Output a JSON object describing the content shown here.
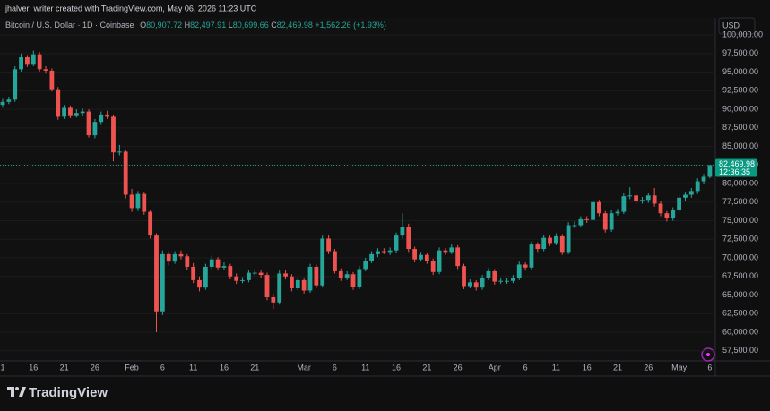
{
  "page": {
    "caption": "jhalver_writer created with TradingView.com, May 06, 2026 11:23 UTC",
    "symbol": "Bitcoin / U.S. Dollar · 1D · Coinbase",
    "ohlc": [
      {
        "key": "O",
        "value": "80,907.72"
      },
      {
        "key": "H",
        "value": "82,497.91"
      },
      {
        "key": "L",
        "value": "80,699.66"
      },
      {
        "key": "C",
        "value": "82,469.98"
      }
    ],
    "change": "+1,562.26 (+1.93%)",
    "currency": "USD",
    "last_price_label": "82,469.98",
    "countdown": "12:36:35",
    "brand": "TradingView"
  },
  "chart_data": {
    "type": "candlestick",
    "up_color": "#26a69a",
    "down_color": "#ef5350",
    "grid": true,
    "categories": [
      "1",
      null,
      null,
      null,
      null,
      "16",
      null,
      null,
      null,
      null,
      "21",
      null,
      null,
      null,
      null,
      "26",
      null,
      null,
      null,
      null,
      null,
      "Feb",
      null,
      null,
      null,
      null,
      "6",
      null,
      null,
      null,
      null,
      "11",
      null,
      null,
      null,
      null,
      "16",
      null,
      null,
      null,
      null,
      "21",
      null,
      null,
      null,
      null,
      null,
      null,
      null,
      "Mar",
      null,
      null,
      null,
      null,
      "6",
      null,
      null,
      null,
      null,
      "11",
      null,
      null,
      null,
      null,
      "16",
      null,
      null,
      null,
      null,
      "21",
      null,
      null,
      null,
      null,
      "26",
      null,
      null,
      null,
      null,
      null,
      "Apr",
      null,
      null,
      null,
      null,
      "6",
      null,
      null,
      null,
      null,
      "11",
      null,
      null,
      null,
      null,
      "16",
      null,
      null,
      null,
      null,
      "21",
      null,
      null,
      null,
      null,
      "26",
      null,
      null,
      null,
      null,
      "May",
      null,
      null,
      null,
      null,
      "6"
    ],
    "open": [
      90600,
      91000,
      91300,
      95400,
      97000,
      96000,
      97400,
      95400,
      95200,
      92700,
      89000,
      90200,
      89200,
      89500,
      89700,
      86500,
      88300,
      89300,
      89000,
      84200,
      84300,
      78500,
      76700,
      78600,
      76200,
      73000,
      62800,
      70500,
      69500,
      70500,
      70200,
      68800,
      67000,
      66000,
      68800,
      69800,
      68700,
      68900,
      67500,
      66900,
      67000,
      68000,
      68000,
      67700,
      64700,
      64000,
      67900,
      67500,
      65900,
      67000,
      65600,
      68800,
      66300,
      72600,
      70900,
      68200,
      67300,
      67800,
      66100,
      68500,
      69600,
      70500,
      70900,
      70800,
      71000,
      73000,
      74200,
      71200,
      69800,
      70400,
      69600,
      68100,
      71000,
      70800,
      71400,
      68900,
      66200,
      66700,
      66000,
      67300,
      68200,
      66800,
      66900,
      66900,
      67300,
      69100,
      68700,
      71800,
      71200,
      72700,
      72000,
      72900,
      70800,
      74400,
      74400,
      75200,
      75100,
      77500,
      76000,
      73800,
      76000,
      76200,
      78300,
      78400,
      77600,
      77800,
      78400,
      77300,
      76000,
      75300,
      76400,
      78100,
      78500,
      79000,
      80300,
      80907.72
    ],
    "high": [
      91400,
      91700,
      95800,
      97500,
      97300,
      97900,
      97700,
      95800,
      95500,
      93000,
      90600,
      90500,
      90000,
      90100,
      90000,
      88700,
      89700,
      89800,
      89300,
      85200,
      84600,
      79300,
      79000,
      78900,
      76500,
      73300,
      71000,
      70900,
      70900,
      71000,
      70500,
      69300,
      67500,
      69200,
      70300,
      70100,
      69400,
      69200,
      67900,
      67400,
      68400,
      68500,
      68300,
      68000,
      65200,
      68300,
      68400,
      67800,
      67400,
      67300,
      69200,
      69100,
      73000,
      73100,
      71200,
      68600,
      68200,
      68100,
      68900,
      70000,
      70900,
      71300,
      71300,
      71400,
      73400,
      76000,
      74600,
      71500,
      70800,
      70700,
      69900,
      71400,
      71300,
      71800,
      71700,
      69200,
      67100,
      67000,
      67700,
      68600,
      68500,
      67300,
      67300,
      67700,
      69500,
      69400,
      72200,
      72100,
      73100,
      73000,
      73300,
      73200,
      74800,
      74900,
      75600,
      75600,
      77900,
      77800,
      76300,
      76400,
      76600,
      78700,
      79500,
      78700,
      78200,
      78800,
      79400,
      77600,
      76300,
      76800,
      78500,
      78900,
      79400,
      80700,
      81300,
      82497.91
    ],
    "low": [
      90200,
      90700,
      91000,
      95100,
      95700,
      95800,
      95100,
      94800,
      92400,
      88600,
      88700,
      88800,
      88900,
      89100,
      86200,
      86100,
      87900,
      88700,
      83000,
      83800,
      78000,
      76200,
      76300,
      75800,
      72600,
      60000,
      62300,
      69000,
      69200,
      69800,
      68400,
      66600,
      65500,
      65700,
      68400,
      68300,
      68400,
      67100,
      66500,
      66600,
      66700,
      67600,
      67300,
      64300,
      63100,
      63700,
      67100,
      65500,
      65600,
      65200,
      65300,
      65900,
      66000,
      70500,
      67900,
      66900,
      67000,
      65700,
      65800,
      68200,
      69300,
      70100,
      70500,
      70400,
      70700,
      72600,
      70800,
      69400,
      69500,
      69200,
      67700,
      67800,
      70400,
      70500,
      68500,
      65800,
      65900,
      65600,
      65700,
      67000,
      66400,
      66500,
      66500,
      66600,
      67000,
      68300,
      68400,
      70800,
      70900,
      71600,
      71700,
      70400,
      70500,
      74000,
      74100,
      74700,
      74800,
      75600,
      73400,
      73500,
      75700,
      75900,
      77900,
      77200,
      77300,
      77400,
      76900,
      75600,
      74900,
      75000,
      76100,
      77700,
      78100,
      78600,
      80000,
      80699.66
    ],
    "close": [
      91000,
      91300,
      95400,
      97000,
      96000,
      97400,
      95400,
      95200,
      92700,
      89000,
      90200,
      89200,
      89500,
      89700,
      86500,
      88300,
      89300,
      89000,
      84200,
      84300,
      78500,
      76700,
      78600,
      76200,
      73000,
      62800,
      70500,
      69500,
      70500,
      70200,
      68800,
      67000,
      66000,
      68800,
      69800,
      68700,
      68900,
      67500,
      66900,
      67000,
      68000,
      68000,
      67700,
      64700,
      64000,
      67900,
      67500,
      65900,
      67000,
      65600,
      68800,
      66300,
      72600,
      70900,
      68200,
      67300,
      67800,
      66100,
      68500,
      69600,
      70500,
      70900,
      70800,
      71000,
      73000,
      74200,
      71200,
      69800,
      70400,
      69600,
      68100,
      71000,
      70800,
      71400,
      68900,
      66200,
      66700,
      66000,
      67300,
      68200,
      66800,
      66900,
      66900,
      67300,
      69100,
      68700,
      71800,
      71200,
      72700,
      72000,
      72900,
      70800,
      74400,
      74400,
      75200,
      75100,
      77500,
      76000,
      73800,
      76000,
      76200,
      78300,
      78400,
      77600,
      77800,
      78400,
      77300,
      76000,
      75300,
      76400,
      78100,
      78500,
      79000,
      80300,
      80907.72,
      82469.98
    ],
    "ylim": [
      56500,
      101100
    ],
    "yticks": [
      {
        "value": 57500,
        "label": "57,500.00"
      },
      {
        "value": 60000,
        "label": "60,000.00"
      },
      {
        "value": 62500,
        "label": "62,500.00"
      },
      {
        "value": 65000,
        "label": "65,000.00"
      },
      {
        "value": 67500,
        "label": "67,500.00"
      },
      {
        "value": 70000,
        "label": "70,000.00"
      },
      {
        "value": 72500,
        "label": "72,500.00"
      },
      {
        "value": 75000,
        "label": "75,000.00"
      },
      {
        "value": 77500,
        "label": "77,500.00"
      },
      {
        "value": 80000,
        "label": "80,000.00"
      },
      {
        "value": 82500,
        "label": "82,500.00"
      },
      {
        "value": 85000,
        "label": "85,000.00"
      },
      {
        "value": 87500,
        "label": "87,500.00"
      },
      {
        "value": 90000,
        "label": "90,000.00"
      },
      {
        "value": 92500,
        "label": "92,500.00"
      },
      {
        "value": 95000,
        "label": "95,000.00"
      },
      {
        "value": 97500,
        "label": "97,500.00"
      },
      {
        "value": 100000,
        "label": "100,000.00"
      }
    ]
  }
}
